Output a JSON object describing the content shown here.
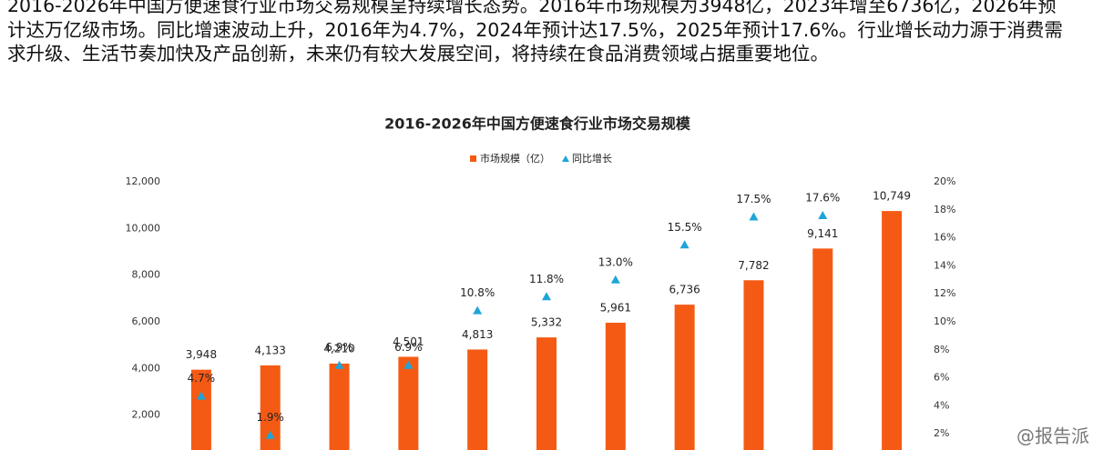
{
  "paragraph": "2016-2026年中国方便速食行业市场交易规模呈持续增长态势。2016年市场规模为3948亿，2023年增至6736亿，2026年预计达万亿级市场。同比增速波动上升，2016年为4.7%，2024年预计达17.5%，2025年预计17.6%。行业增长动力源于消费需求升级、生活节奏加快及产品创新，未来仍有较大发展空间，将持续在食品消费领域占据重要地位。",
  "source_mark": "@报告派",
  "chart_data": {
    "type": "bar",
    "title": "2016-2026年中国方便速食行业市场交易规模",
    "categories": [
      null,
      null,
      null,
      null,
      null,
      null,
      null,
      null,
      null,
      null,
      null
    ],
    "series": [
      {
        "name": "市场规模（亿）",
        "color": "#f55a14",
        "values": [
          3948,
          4133,
          4210,
          4501,
          4813,
          5332,
          5961,
          6736,
          7782,
          9141,
          10749
        ],
        "value_labels": [
          "3,948",
          "4,133",
          "4,210",
          "4,501",
          "4,813",
          "5,332",
          "5,961",
          "6,736",
          "7,782",
          "9,141",
          "10,749"
        ]
      },
      {
        "name": "同比增长",
        "color": "#1ea5d8",
        "axis": "y2",
        "marker": "triangle",
        "values": [
          4.7,
          1.9,
          6.9,
          6.9,
          10.8,
          11.8,
          13.0,
          15.5,
          17.5,
          17.6,
          null
        ],
        "value_labels": [
          "4.7%",
          "1.9%",
          "6.9%",
          "6.9%",
          "10.8%",
          "11.8%",
          "13.0%",
          "15.5%",
          "17.5%",
          "17.6%",
          null
        ]
      }
    ],
    "ylim": [
      0,
      12000
    ],
    "yticks": [
      {
        "value": 2000,
        "label": "2,000"
      },
      {
        "value": 4000,
        "label": "4,000"
      },
      {
        "value": 6000,
        "label": "6,000"
      },
      {
        "value": 8000,
        "label": "8,000"
      },
      {
        "value": 10000,
        "label": "10,000"
      },
      {
        "value": 12000,
        "label": "12,000"
      }
    ],
    "y2lim": [
      0,
      20
    ],
    "y2ticks": [
      {
        "value": 2,
        "label": "2%"
      },
      {
        "value": 4,
        "label": "4%"
      },
      {
        "value": 6,
        "label": "6%"
      },
      {
        "value": 8,
        "label": "8%"
      },
      {
        "value": 10,
        "label": "10%"
      },
      {
        "value": 12,
        "label": "12%"
      },
      {
        "value": 14,
        "label": "14%"
      },
      {
        "value": 16,
        "label": "16%"
      },
      {
        "value": 18,
        "label": "18%"
      },
      {
        "value": 20,
        "label": "20%"
      }
    ],
    "legend": "top"
  }
}
